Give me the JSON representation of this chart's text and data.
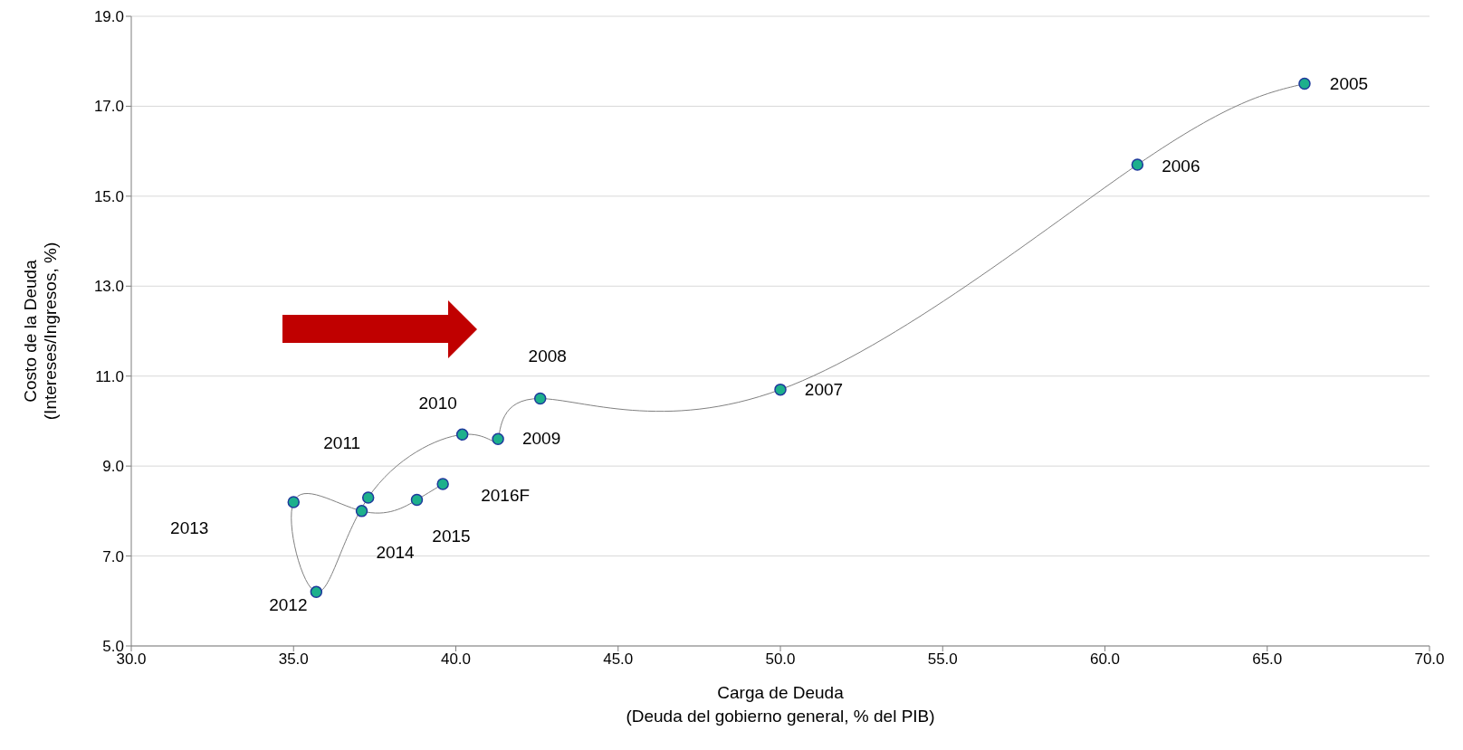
{
  "chart_data": {
    "type": "line",
    "xlabel": "Carga de Deuda\n(Deuda del gobierno general, % del PIB)",
    "ylabel": "Costo de la Deuda\n(Intereses/Ingresos, %)",
    "x": [
      66.15,
      61.0,
      50.0,
      42.6,
      41.3,
      40.2,
      37.3,
      35.7,
      35.0,
      37.1,
      38.8,
      39.6
    ],
    "series": [
      {
        "color": "#808080",
        "values": [
          17.5,
          15.7,
          10.7,
          10.5,
          9.6,
          9.7,
          8.3,
          6.2,
          8.2,
          8.0,
          8.25,
          8.6
        ]
      }
    ],
    "marker": "circle",
    "grid": "y",
    "xlim": [
      30,
      70
    ],
    "xticks": [
      {
        "value": 30,
        "label": "30.0"
      },
      {
        "value": 35,
        "label": "35.0"
      },
      {
        "value": 40,
        "label": "40.0"
      },
      {
        "value": 45,
        "label": "45.0"
      },
      {
        "value": 50,
        "label": "50.0"
      },
      {
        "value": 55,
        "label": "55.0"
      },
      {
        "value": 60,
        "label": "60.0"
      },
      {
        "value": 65,
        "label": "65.0"
      },
      {
        "value": 70,
        "label": "70.0"
      }
    ],
    "ylim": [
      5,
      19
    ],
    "yticks": [
      {
        "value": 5,
        "label": "5.0"
      },
      {
        "value": 7,
        "label": "7.0"
      },
      {
        "value": 9,
        "label": "9.0"
      },
      {
        "value": 11,
        "label": "11.0"
      },
      {
        "value": 13,
        "label": "13.0"
      },
      {
        "value": 15,
        "label": "15.0"
      },
      {
        "value": 17,
        "label": "17.0"
      },
      {
        "value": 19,
        "label": "19.0"
      }
    ],
    "annotations": [
      {
        "text": "2005",
        "x": 66.15,
        "y": 17.5
      },
      {
        "text": "2006",
        "x": 61.0,
        "y": 15.7
      },
      {
        "text": "2007",
        "x": 50.0,
        "y": 10.7
      },
      {
        "text": "2008",
        "x": 42.6,
        "y": 10.5
      },
      {
        "text": "2009",
        "x": 41.3,
        "y": 9.6
      },
      {
        "text": "2010",
        "x": 40.2,
        "y": 9.7
      },
      {
        "text": "2011",
        "x": 37.3,
        "y": 8.3
      },
      {
        "text": "2012",
        "x": 35.7,
        "y": 6.2
      },
      "2013",
      {
        "text": "2014",
        "x": 37.1,
        "y": 8.0
      },
      {
        "text": "2015",
        "x": 38.8,
        "y": 8.25
      },
      {
        "text": "2016F",
        "x": 39.6,
        "y": 8.6
      }
    ]
  }
}
